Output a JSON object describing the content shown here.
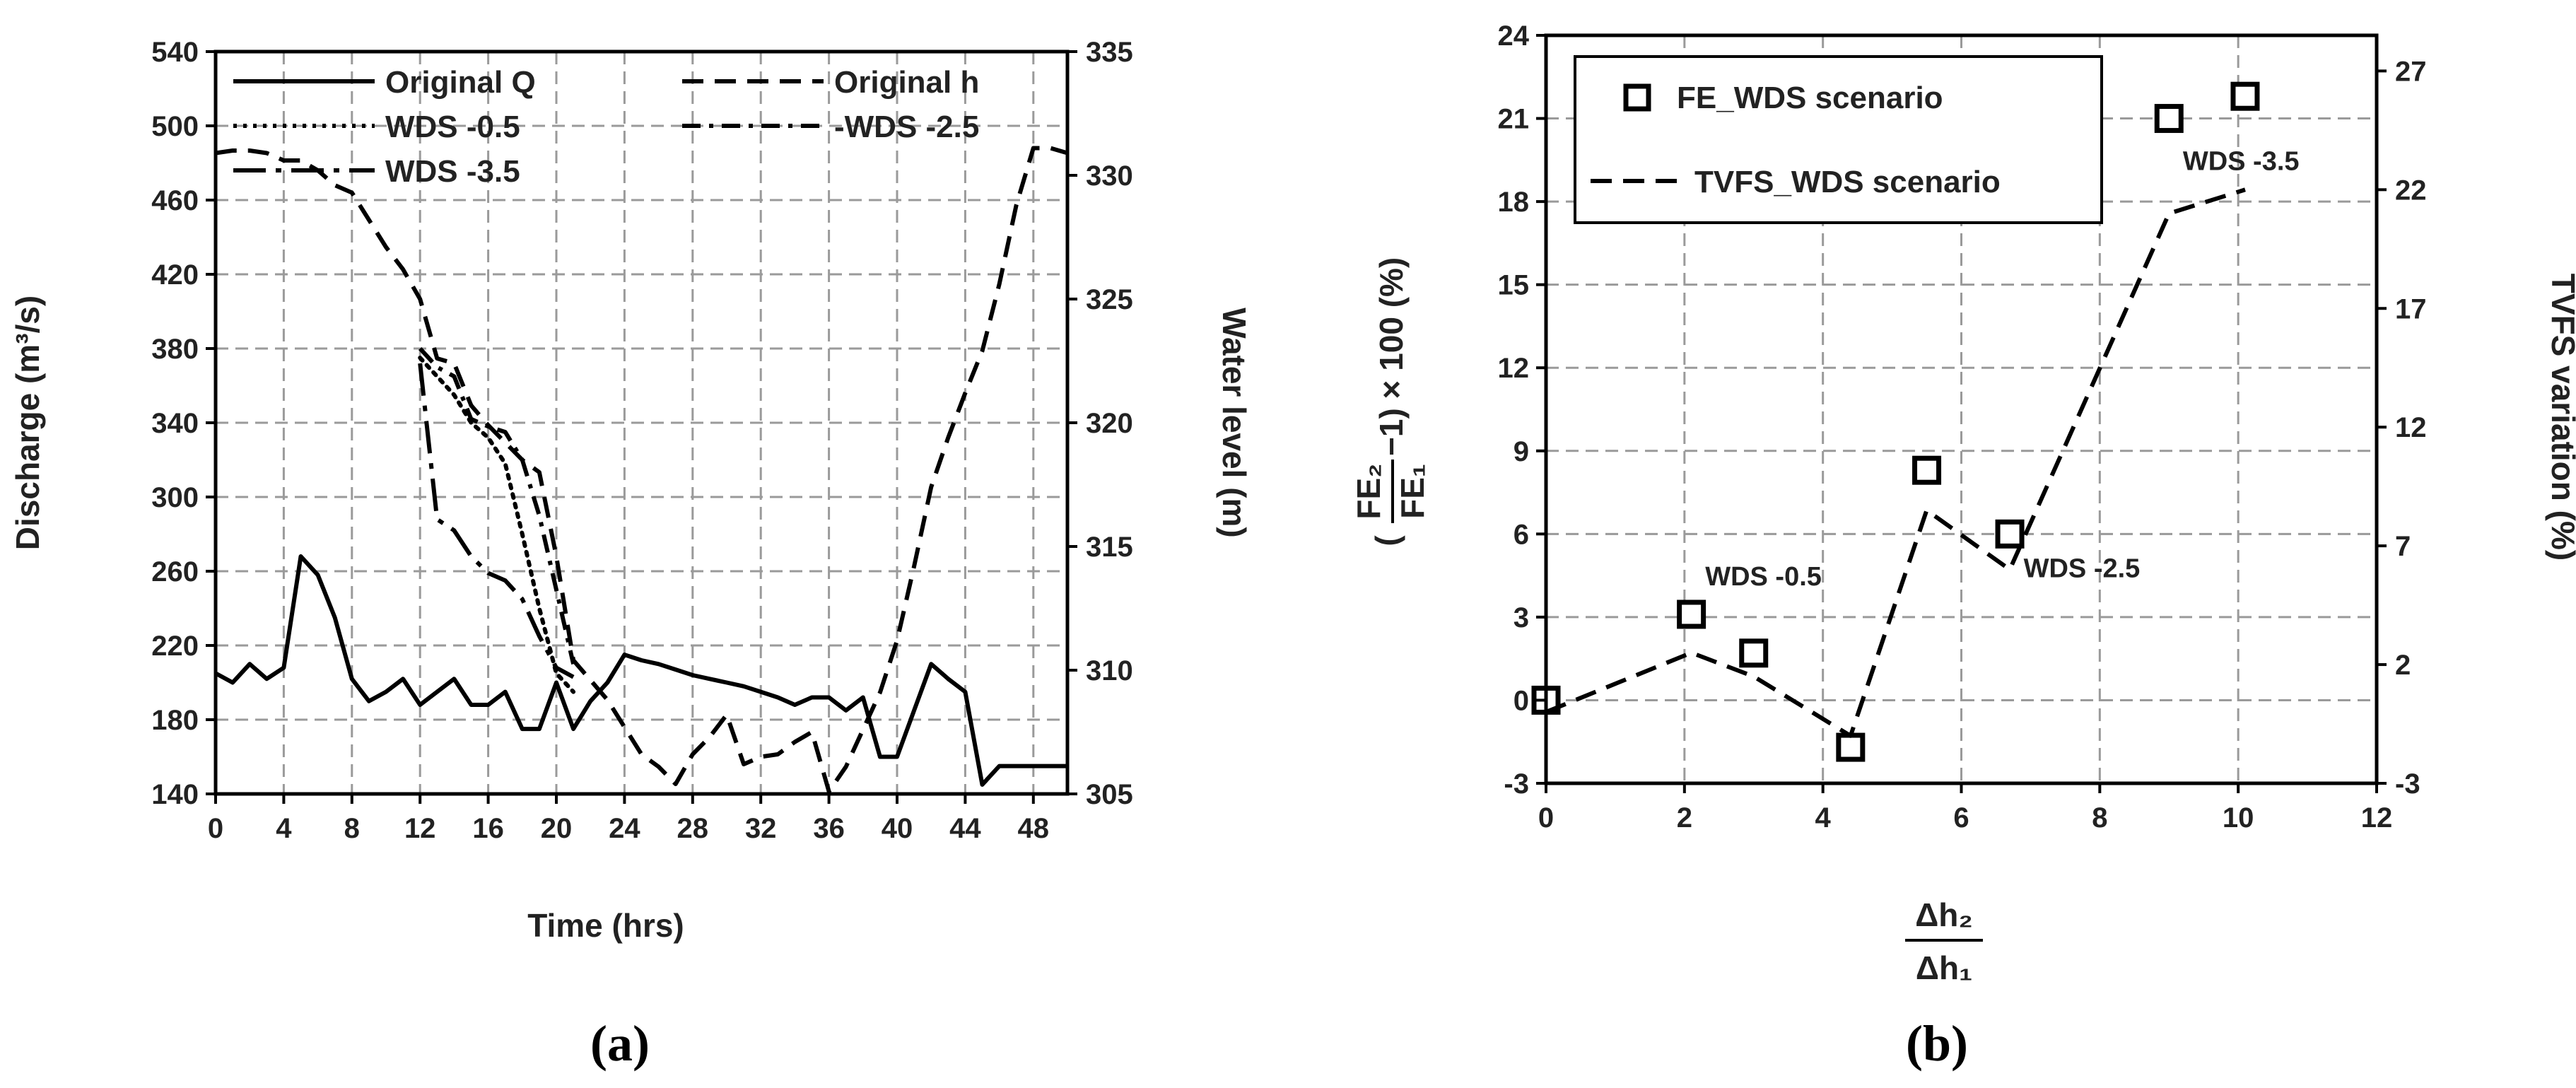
{
  "chart_data": [
    {
      "type": "line",
      "panel_label": "(a)",
      "xlabel": "Time (hrs)",
      "ylabel": "Discharge (m³/s)",
      "y2label": "Water level (m)",
      "xlim": [
        0,
        50
      ],
      "ylim": [
        140,
        540
      ],
      "y2lim": [
        305,
        335
      ],
      "xticks": [
        0,
        4,
        8,
        12,
        16,
        20,
        24,
        28,
        32,
        36,
        40,
        44,
        48
      ],
      "yticks": [
        140,
        180,
        220,
        260,
        300,
        340,
        380,
        420,
        460,
        500,
        540
      ],
      "y2ticks": [
        305,
        310,
        315,
        320,
        325,
        330,
        335
      ],
      "grid": true,
      "legend_position": "top",
      "series": [
        {
          "name": "Original Q",
          "style": "solid",
          "axis": "left",
          "x": [
            0,
            1,
            2,
            3,
            4,
            5,
            6,
            7,
            8,
            9,
            10,
            11,
            12,
            13,
            14,
            15,
            16,
            17,
            18,
            19,
            20,
            21,
            22,
            23,
            24,
            25,
            26,
            27,
            28,
            29,
            30,
            31,
            32,
            33,
            34,
            35,
            36,
            37,
            38,
            39,
            40,
            41,
            42,
            43,
            44,
            45,
            46,
            47,
            48,
            49,
            50
          ],
          "y": [
            205,
            200,
            210,
            202,
            208,
            268,
            258,
            235,
            202,
            190,
            195,
            202,
            188,
            195,
            202,
            188,
            188,
            195,
            175,
            175,
            200,
            175,
            190,
            200,
            215,
            212,
            210,
            207,
            204,
            202,
            200,
            198,
            195,
            192,
            188,
            192,
            192,
            185,
            192,
            160,
            160,
            185,
            210,
            202,
            195,
            145,
            155,
            155,
            155,
            155,
            155
          ]
        },
        {
          "name": "Original h",
          "style": "dashed",
          "axis": "right",
          "x": [
            0,
            1,
            2,
            3,
            4,
            5,
            6,
            7,
            8,
            9,
            10,
            11,
            12,
            13,
            14,
            15,
            16,
            17,
            18,
            19,
            20,
            21,
            22,
            23,
            24,
            25,
            26,
            27,
            28,
            29,
            30,
            31,
            32,
            33,
            34,
            35,
            36,
            37,
            38,
            39,
            40,
            41,
            42,
            43,
            44,
            45,
            46,
            47,
            48,
            49,
            50
          ],
          "y": [
            330.9,
            331,
            331,
            330.9,
            330.6,
            330.6,
            330.2,
            329.6,
            329.3,
            328.2,
            327.1,
            326.2,
            325,
            322.6,
            322.4,
            320.7,
            319.9,
            319.2,
            318.5,
            318,
            314.6,
            310.4,
            309.6,
            308.8,
            307.7,
            306.6,
            306.1,
            305.4,
            306.6,
            307.3,
            308.2,
            306.2,
            306.5,
            306.6,
            307.1,
            307.5,
            305.1,
            306.1,
            307.6,
            309.1,
            311.2,
            314.2,
            317.4,
            319.4,
            321.2,
            322.9,
            325.6,
            328.8,
            331.1,
            331.1,
            330.9
          ]
        },
        {
          "name": "WDS -0.5",
          "style": "dotted",
          "axis": "left",
          "x": [
            12,
            13,
            14,
            15,
            16,
            17,
            18,
            19,
            20,
            21
          ],
          "y": [
            375,
            365,
            355,
            340,
            332,
            318,
            280,
            240,
            205,
            195
          ]
        },
        {
          "name": "-WDS -2.5",
          "style": "dash-dot",
          "axis": "left",
          "x": [
            12,
            13,
            14,
            15,
            16,
            17,
            18,
            19,
            20,
            21
          ],
          "y": [
            380,
            370,
            365,
            342,
            338,
            335,
            320,
            290,
            250,
            210
          ]
        },
        {
          "name": "WDS -3.5",
          "style": "long-dash-dot",
          "axis": "left",
          "x": [
            12,
            13,
            14,
            15,
            16,
            17,
            18,
            19,
            20,
            21
          ],
          "y": [
            372,
            288,
            282,
            268,
            259,
            255,
            245,
            225,
            208,
            203
          ]
        }
      ]
    },
    {
      "type": "scatter",
      "panel_label": "(b)",
      "xlabel_num": "Δh₂",
      "xlabel_den": "Δh₁",
      "ylabel_num": "FE₂",
      "ylabel_den": "FE₁",
      "ylabel_rest": "−1) × 100 (%)",
      "ylabel_open": "(",
      "y2label": "TVFS variation (%)",
      "xlim": [
        0,
        12
      ],
      "ylim": [
        -3,
        24
      ],
      "y2lim": [
        -3,
        28.5
      ],
      "xticks": [
        0,
        2,
        4,
        6,
        8,
        10,
        12
      ],
      "yticks": [
        -3,
        0,
        3,
        6,
        9,
        12,
        15,
        18,
        21,
        24
      ],
      "y2ticks": [
        -3,
        2,
        7,
        12,
        17,
        22,
        27
      ],
      "grid": true,
      "legend_position": "top-left",
      "series": [
        {
          "name": "FE_WDS scenario",
          "style": "open-square-marker",
          "axis": "left",
          "x": [
            0,
            2.1,
            3.0,
            4.4,
            5.5,
            6.7,
            9.0,
            10.1
          ],
          "y": [
            0,
            3.1,
            1.7,
            -1.7,
            8.3,
            6.0,
            21.0,
            21.8
          ]
        },
        {
          "name": "TVFS_WDS scenario",
          "style": "dashed",
          "axis": "right",
          "x": [
            0,
            2.1,
            3.0,
            4.4,
            5.5,
            6.7,
            9.0,
            10.1
          ],
          "y": [
            0,
            2.5,
            1.5,
            -1.0,
            8.5,
            6.0,
            21.0,
            22.0
          ]
        }
      ],
      "annotations": [
        {
          "text": "WDS -0.5",
          "x": 2.3,
          "y": 4.5
        },
        {
          "text": "WDS -2.5",
          "x": 6.9,
          "y": 4.8
        },
        {
          "text": "WDS -3.5",
          "x": 9.2,
          "y": 19.5
        }
      ]
    }
  ]
}
